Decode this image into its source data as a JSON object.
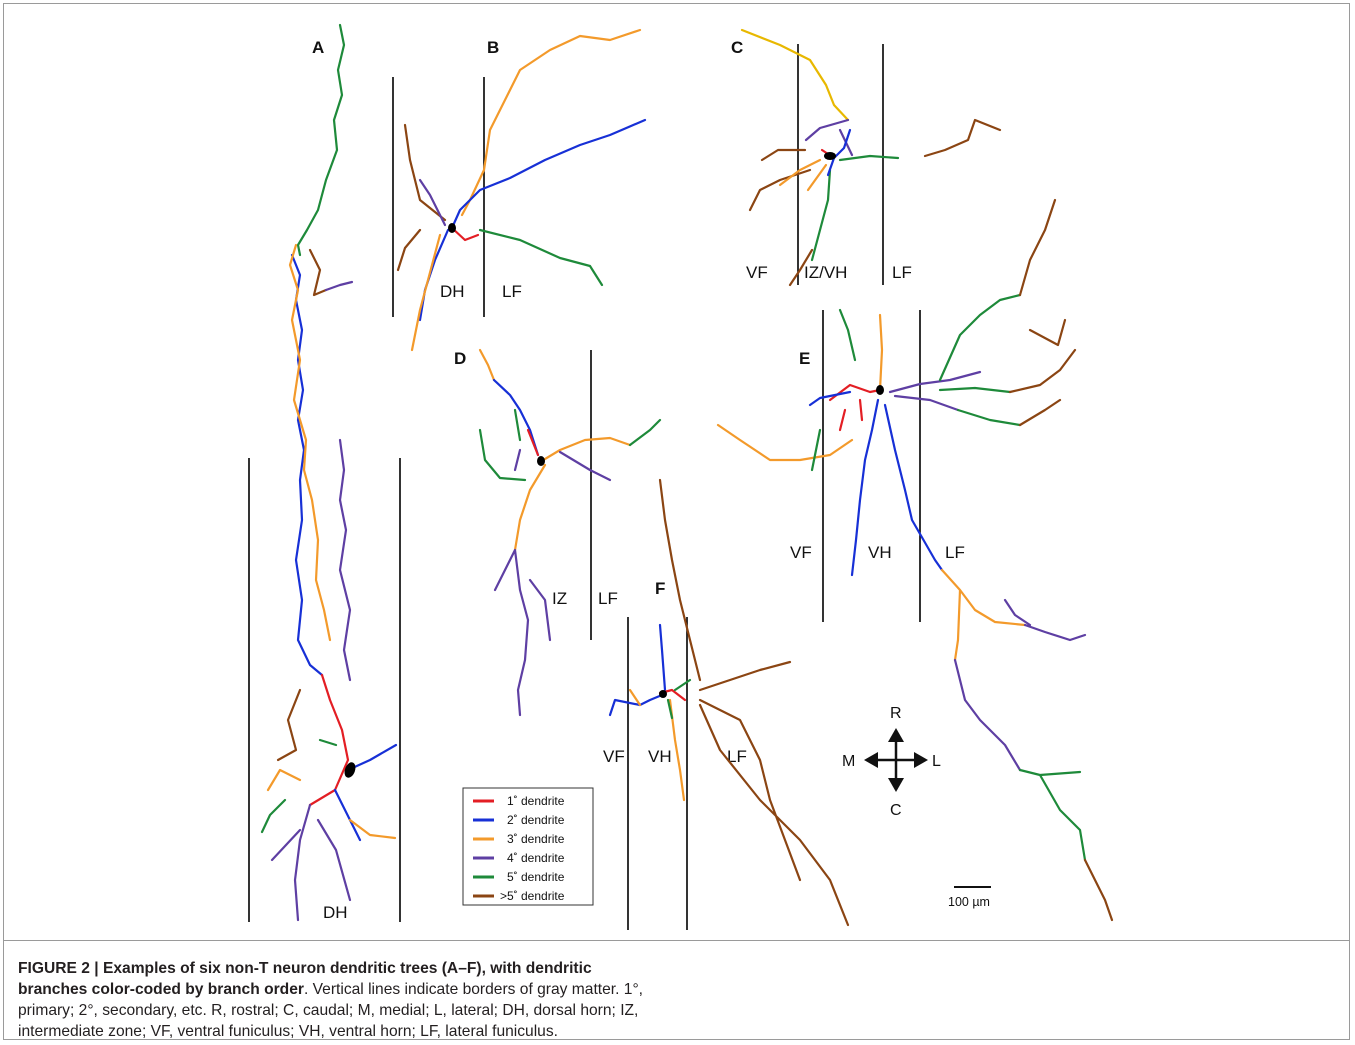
{
  "figure": {
    "panels": [
      "A",
      "B",
      "C",
      "D",
      "E",
      "F"
    ],
    "regions": {
      "a": [
        "DH"
      ],
      "b": [
        "DH",
        "LF"
      ],
      "c": [
        "VF",
        "IZ/VH",
        "LF"
      ],
      "d": [
        "IZ",
        "LF"
      ],
      "e": [
        "VF",
        "VH",
        "LF"
      ],
      "f": [
        "VF",
        "VH",
        "LF"
      ]
    },
    "legend": [
      {
        "label": "1˚ dendrite",
        "color": "#e31e24"
      },
      {
        "label": "2˚ dendrite",
        "color": "#1730d6"
      },
      {
        "label": "3˚ dendrite",
        "color": "#f39a2b"
      },
      {
        "label": "4˚ dendrite",
        "color": "#5e3fa3"
      },
      {
        "label": "5˚ dendrite",
        "color": "#1e8a3a"
      },
      {
        "label": ">5˚ dendrite",
        "color": "#8b4513"
      }
    ],
    "compass": {
      "up": "R",
      "down": "C",
      "left": "M",
      "right": "L"
    },
    "scale_bar": "100 µm"
  },
  "caption": {
    "bold": "FIGURE 2 | Examples of six non-T neuron dendritic trees (A–F), with dendritic branches color-coded by branch order",
    "text": ". Vertical lines indicate borders of gray matter. 1°, primary; 2°, secondary, etc. R, rostral; C, caudal; M, medial; L, lateral; DH, dorsal horn; IZ, intermediate zone; VF, ventral funiculus; VH, ventral horn; LF, lateral funiculus."
  }
}
